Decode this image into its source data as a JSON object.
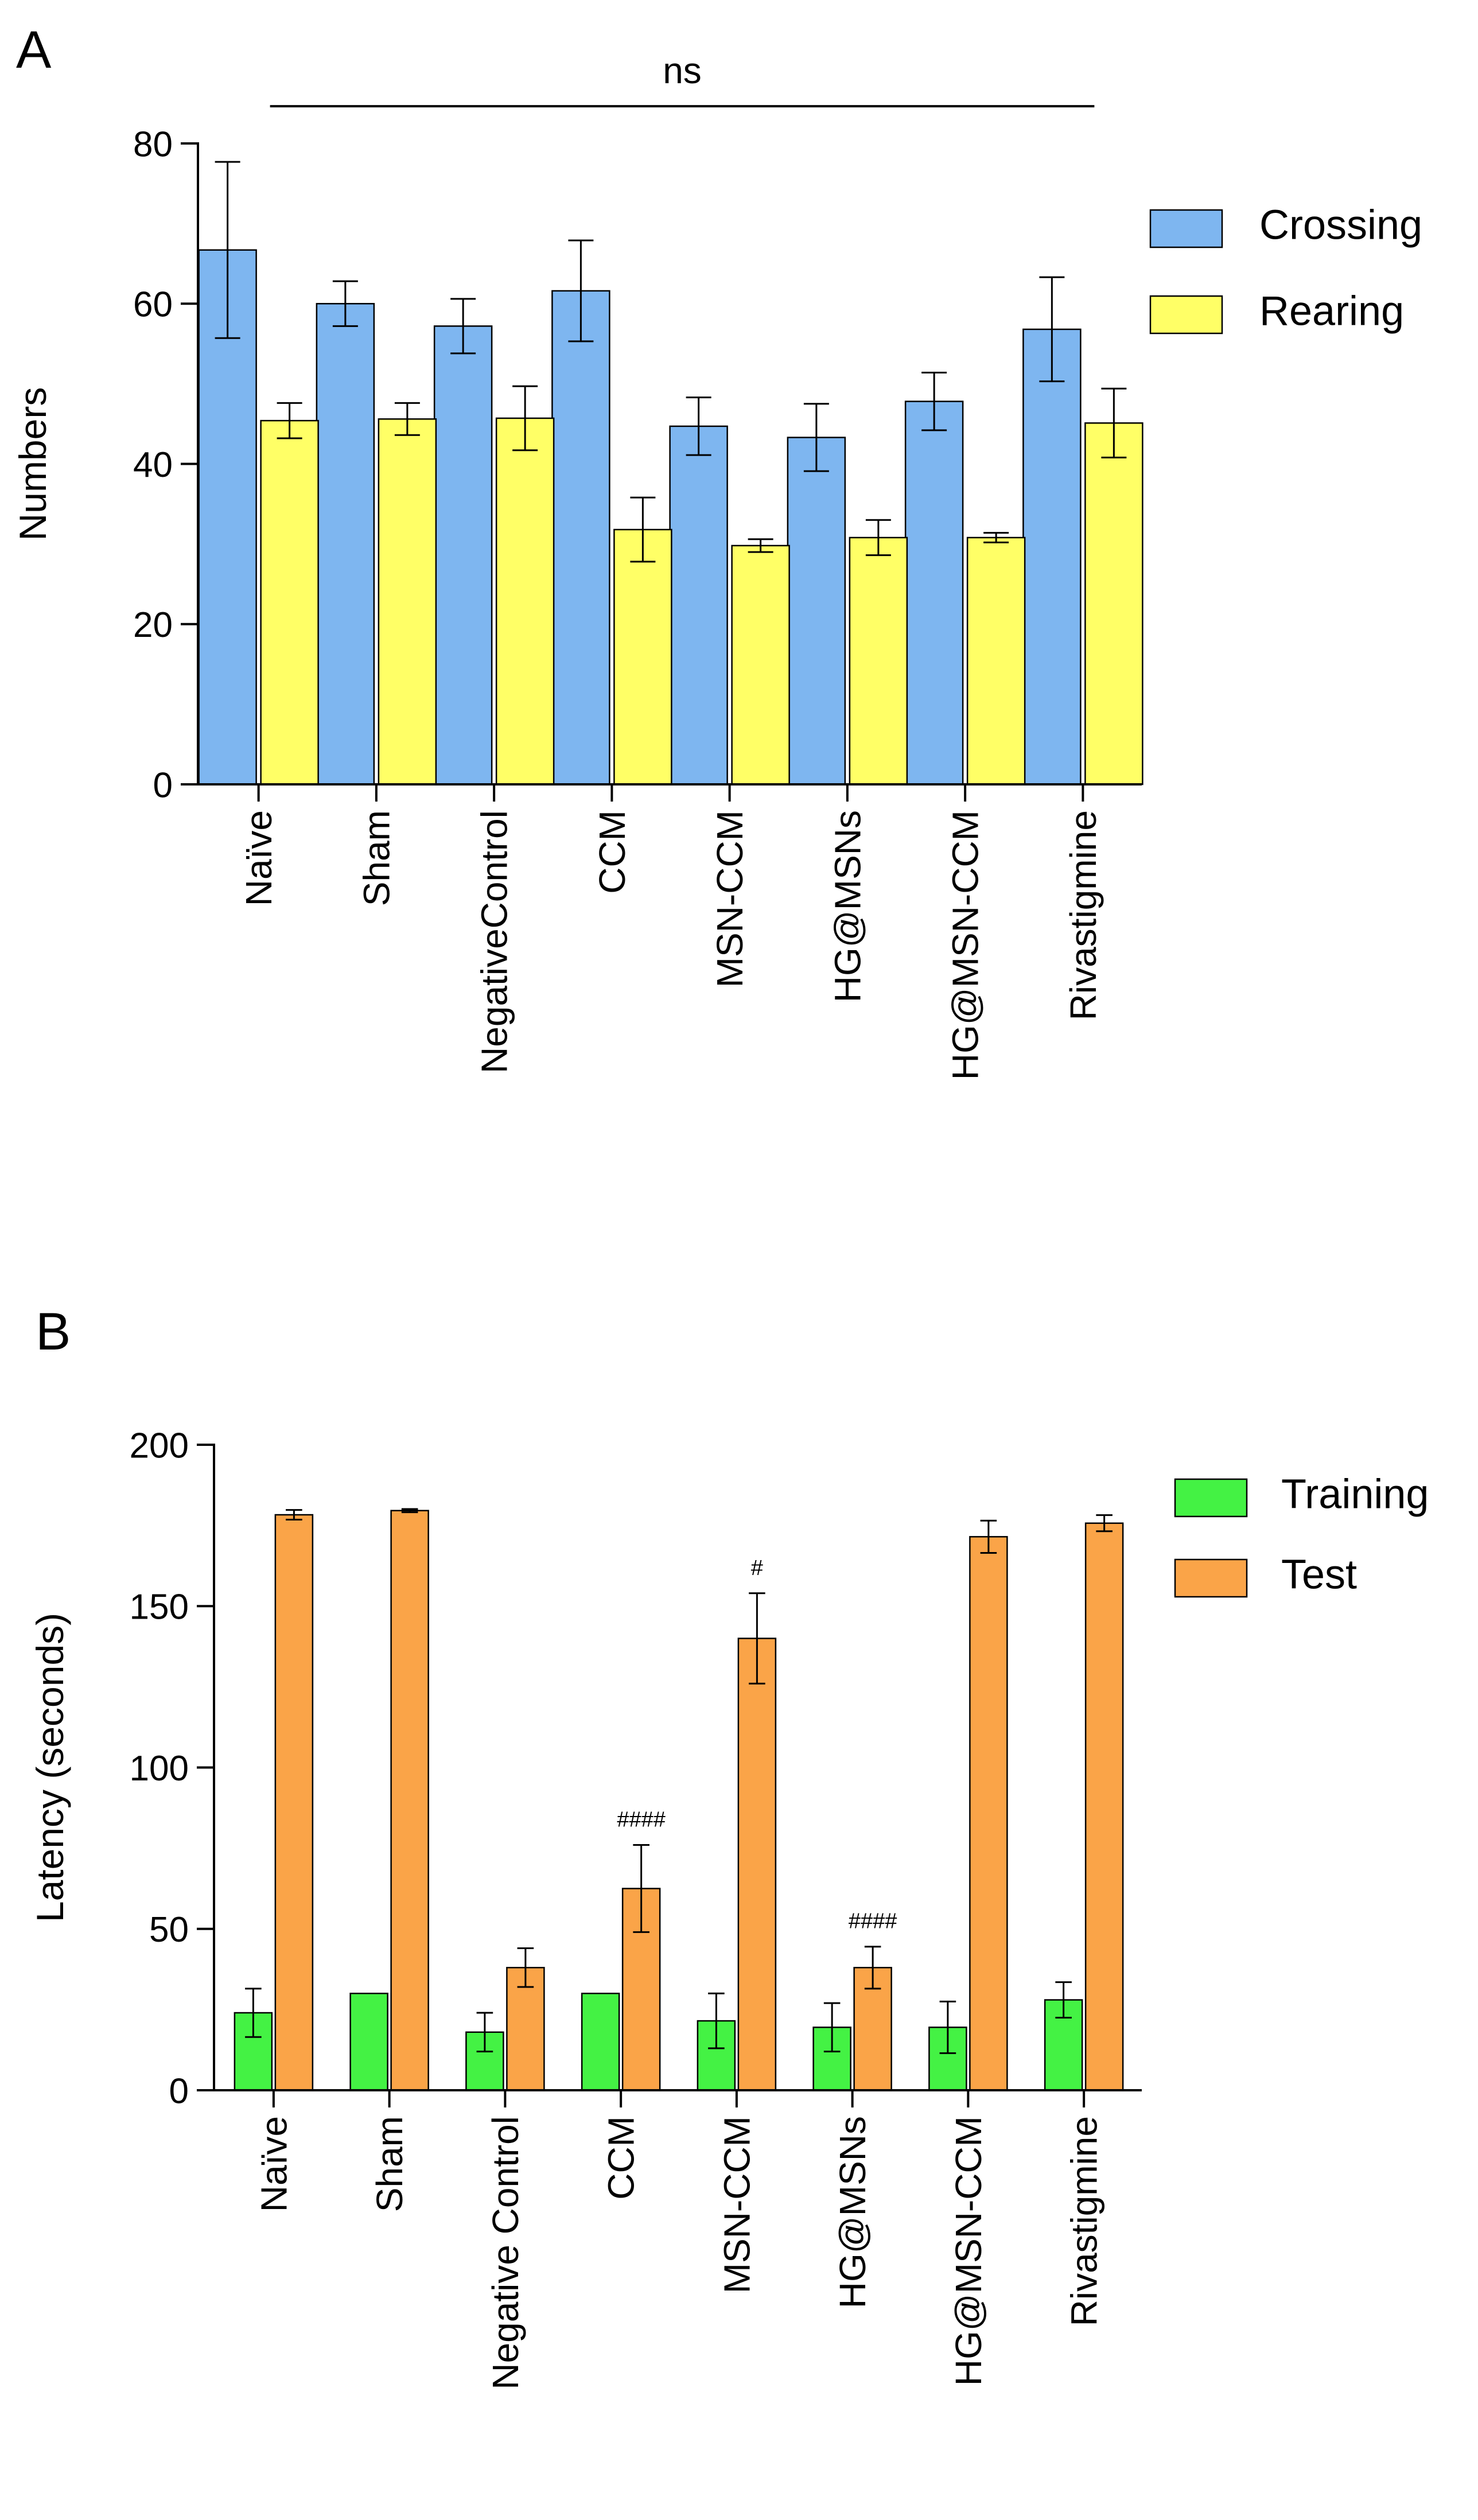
{
  "colors": {
    "crossing": "#7EB6F0",
    "rearing": "#FFFF66",
    "training": "#44F244",
    "test": "#FAA448",
    "axis": "#000000"
  },
  "chart_data": [
    {
      "panel_label": "A",
      "type": "bar",
      "title": "",
      "xlabel": "",
      "ylabel": "Numbers",
      "ylim": [
        0,
        80
      ],
      "yticks": [
        0,
        20,
        40,
        60,
        80
      ],
      "grid": false,
      "legend_position": "top-right",
      "categories": [
        "Naïve",
        "Sham",
        "NegativeControl",
        "CCM",
        "MSN-CCM",
        "HG@MSNs",
        "HG@MSN-CCM",
        "Rivastigmine"
      ],
      "series": [
        {
          "name": "Crossing",
          "color_key": "crossing",
          "values": [
            66.7,
            60.0,
            57.2,
            61.6,
            44.7,
            43.3,
            47.8,
            56.8
          ],
          "errors": [
            11.0,
            2.8,
            3.4,
            6.3,
            3.6,
            4.2,
            3.6,
            6.5
          ],
          "annotations": [
            "",
            "",
            "",
            "",
            "",
            "",
            "",
            ""
          ]
        },
        {
          "name": "Rearing",
          "color_key": "rearing",
          "values": [
            45.4,
            45.6,
            45.7,
            31.8,
            29.8,
            30.8,
            30.8,
            45.1
          ],
          "errors": [
            2.2,
            2.0,
            4.0,
            4.0,
            0.8,
            2.2,
            0.6,
            4.3
          ],
          "annotations": [
            "",
            "",
            "",
            "",
            "",
            "",
            "",
            ""
          ]
        }
      ],
      "significance_bar": {
        "label": "ns",
        "y": 82.5,
        "from_category": 0,
        "to_category": 7
      }
    },
    {
      "panel_label": "B",
      "type": "bar",
      "title": "",
      "xlabel": "",
      "ylabel": "Latency (seconds)",
      "ylim": [
        0,
        200
      ],
      "yticks": [
        0,
        50,
        100,
        150,
        200
      ],
      "grid": false,
      "legend_position": "top-right",
      "categories": [
        "Naïve",
        "Sham",
        "Negative Control",
        "CCM",
        "MSN-CCM",
        "HG@MSNs",
        "HG@MSN-CCM",
        "Rivastigmine"
      ],
      "series": [
        {
          "name": "Training",
          "color_key": "training",
          "values": [
            24.0,
            30.0,
            18.0,
            30.0,
            21.5,
            19.5,
            19.5,
            28.0
          ],
          "errors": [
            7.5,
            0,
            6.0,
            0,
            8.5,
            7.5,
            8.0,
            5.5
          ],
          "annotations": [
            "",
            "",
            "",
            "",
            "",
            "",
            "",
            ""
          ]
        },
        {
          "name": "Test",
          "color_key": "test",
          "values": [
            178.3,
            179.6,
            38.0,
            62.5,
            140.0,
            38.0,
            171.5,
            175.7
          ],
          "errors": [
            1.5,
            0.5,
            6.0,
            13.5,
            14.0,
            6.5,
            5.0,
            2.5
          ],
          "annotations": [
            "",
            "",
            "",
            "####",
            "#",
            "####",
            "",
            ""
          ]
        }
      ],
      "significance_bar": null
    }
  ]
}
